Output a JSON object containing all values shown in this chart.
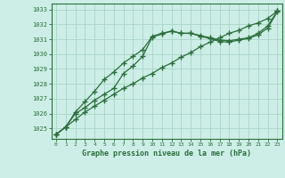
{
  "title": "Graphe pression niveau de la mer (hPa)",
  "bg_color": "#cceee6",
  "grid_color": "#aad4c8",
  "line_color": "#2d6e3e",
  "xlim": [
    -0.5,
    23.5
  ],
  "ylim": [
    1024.3,
    1033.4
  ],
  "yticks": [
    1025,
    1026,
    1027,
    1028,
    1029,
    1030,
    1031,
    1032,
    1033
  ],
  "xticks": [
    0,
    1,
    2,
    3,
    4,
    5,
    6,
    7,
    8,
    9,
    10,
    11,
    12,
    13,
    14,
    15,
    16,
    17,
    18,
    19,
    20,
    21,
    22,
    23
  ],
  "hours": [
    0,
    1,
    2,
    3,
    4,
    5,
    6,
    7,
    8,
    9,
    10,
    11,
    12,
    13,
    14,
    15,
    16,
    17,
    18,
    19,
    20,
    21,
    22,
    23
  ],
  "line_straight": [
    1024.6,
    1025.1,
    1025.6,
    1026.1,
    1026.5,
    1026.9,
    1027.3,
    1027.7,
    1028.0,
    1028.4,
    1028.7,
    1029.1,
    1029.4,
    1029.8,
    1030.1,
    1030.5,
    1030.8,
    1031.1,
    1031.4,
    1031.6,
    1031.9,
    1032.1,
    1032.4,
    1032.9
  ],
  "line_upper": [
    1024.6,
    1025.1,
    1026.1,
    1026.8,
    1027.5,
    1028.3,
    1028.8,
    1029.4,
    1029.85,
    1030.3,
    1031.2,
    1031.4,
    1031.55,
    1031.4,
    1031.4,
    1031.25,
    1031.1,
    1030.95,
    1030.9,
    1031.0,
    1031.1,
    1031.4,
    1031.9,
    1032.9
  ],
  "line_lower": [
    1024.6,
    1025.1,
    1026.0,
    1026.4,
    1026.9,
    1027.3,
    1027.7,
    1028.7,
    1029.2,
    1029.85,
    1031.15,
    1031.35,
    1031.55,
    1031.4,
    1031.4,
    1031.2,
    1031.05,
    1030.85,
    1030.8,
    1030.95,
    1031.05,
    1031.3,
    1031.75,
    1032.85
  ]
}
